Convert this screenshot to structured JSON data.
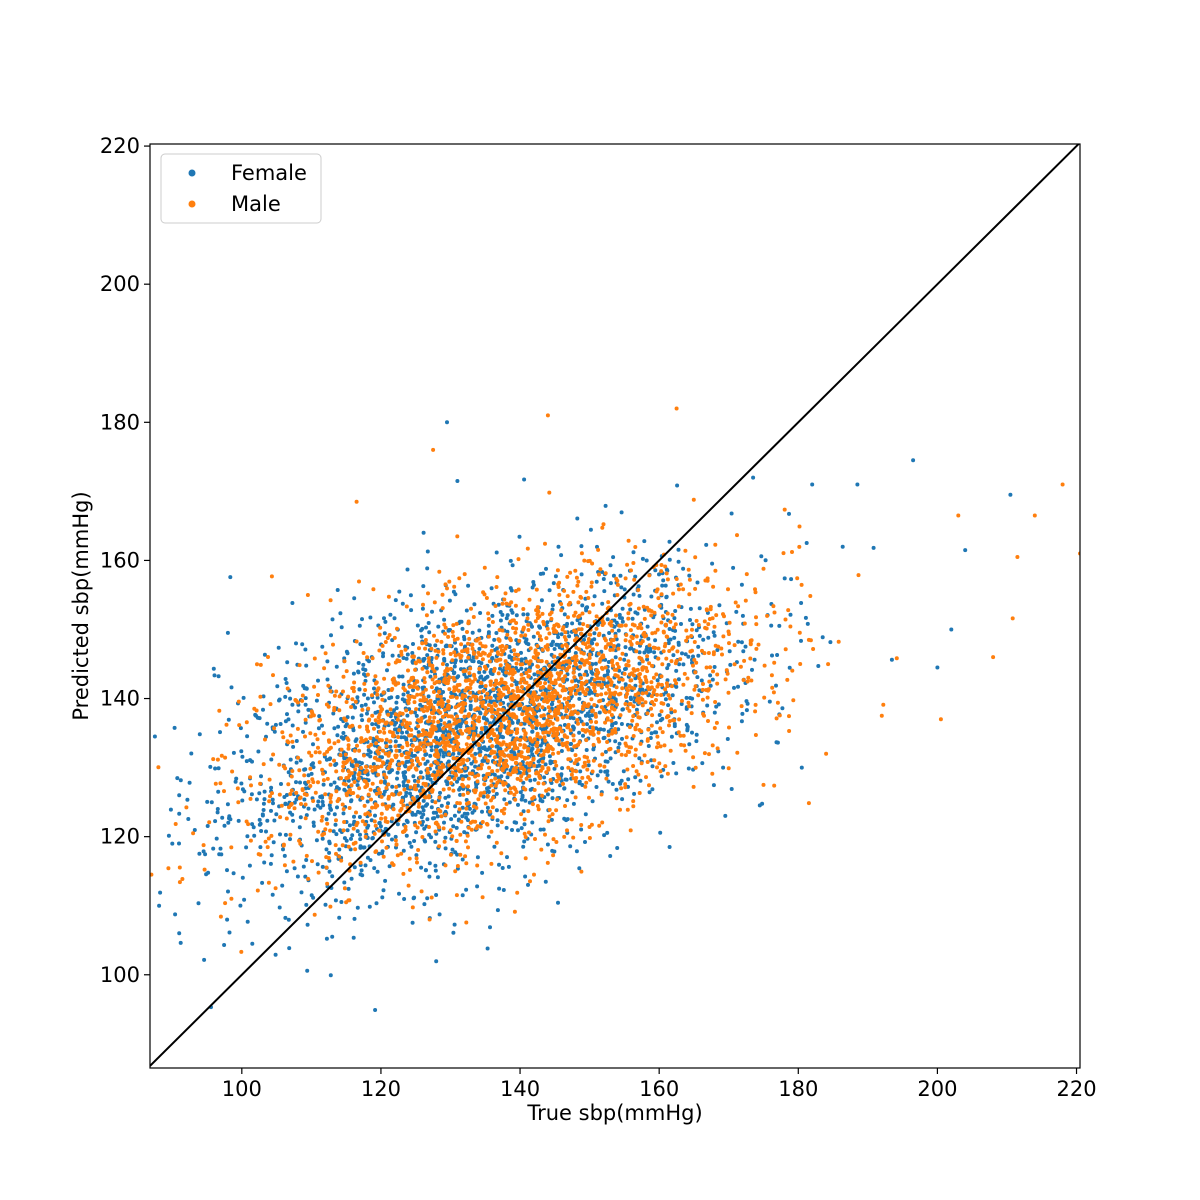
{
  "chart_data": {
    "type": "scatter",
    "title": "",
    "xlabel": "True sbp(mmHg)",
    "ylabel": "Predicted sbp(mmHg)",
    "xlim": [
      86.8,
      220.5
    ],
    "ylim": [
      86.5,
      220.3
    ],
    "x_ticks": [
      100,
      120,
      140,
      160,
      180,
      200,
      220
    ],
    "y_ticks": [
      100,
      120,
      140,
      160,
      180,
      200,
      220
    ],
    "grid": false,
    "legend_position": "upper-left",
    "reference_line": {
      "kind": "identity",
      "color": "#000000"
    },
    "series": [
      {
        "name": "Female",
        "color": "#1f77b4",
        "note_points": "approximate cloud of several thousand points"
      },
      {
        "name": "Male",
        "color": "#ff7f0e",
        "note_points": "approximate cloud of several thousand points"
      }
    ],
    "outliers": {
      "Female": [
        [
          129.5,
          180.0
        ],
        [
          131.0,
          171.5
        ],
        [
          196.5,
          174.5
        ],
        [
          210.5,
          169.5
        ],
        [
          188.5,
          171.0
        ],
        [
          182.0,
          171.0
        ],
        [
          173.5,
          172.0
        ],
        [
          98.0,
          149.5
        ],
        [
          87.5,
          134.5
        ],
        [
          91.0,
          106.0
        ],
        [
          101.5,
          104.5
        ],
        [
          113.0,
          105.5
        ],
        [
          200.0,
          144.5
        ],
        [
          180.5,
          130.0
        ],
        [
          202.0,
          150.0
        ],
        [
          204.0,
          161.5
        ],
        [
          161.5,
          118.5
        ],
        [
          169.5,
          123.0
        ],
        [
          90.0,
          119.0
        ],
        [
          91.0,
          126.0
        ]
      ],
      "Male": [
        [
          144.0,
          181.0
        ],
        [
          162.5,
          182.0
        ],
        [
          127.5,
          176.0
        ],
        [
          116.5,
          168.5
        ],
        [
          218.0,
          171.0
        ],
        [
          214.0,
          166.5
        ],
        [
          211.5,
          160.5
        ],
        [
          220.5,
          161.0
        ],
        [
          208.0,
          146.0
        ],
        [
          200.5,
          137.0
        ],
        [
          203.0,
          166.5
        ],
        [
          109.5,
          155.0
        ],
        [
          87.0,
          114.5
        ],
        [
          98.5,
          111.0
        ],
        [
          127.0,
          108.0
        ],
        [
          142.0,
          114.5
        ],
        [
          184.0,
          132.0
        ],
        [
          192.0,
          137.5
        ],
        [
          175.0,
          127.5
        ],
        [
          93.0,
          120.5
        ]
      ]
    }
  }
}
